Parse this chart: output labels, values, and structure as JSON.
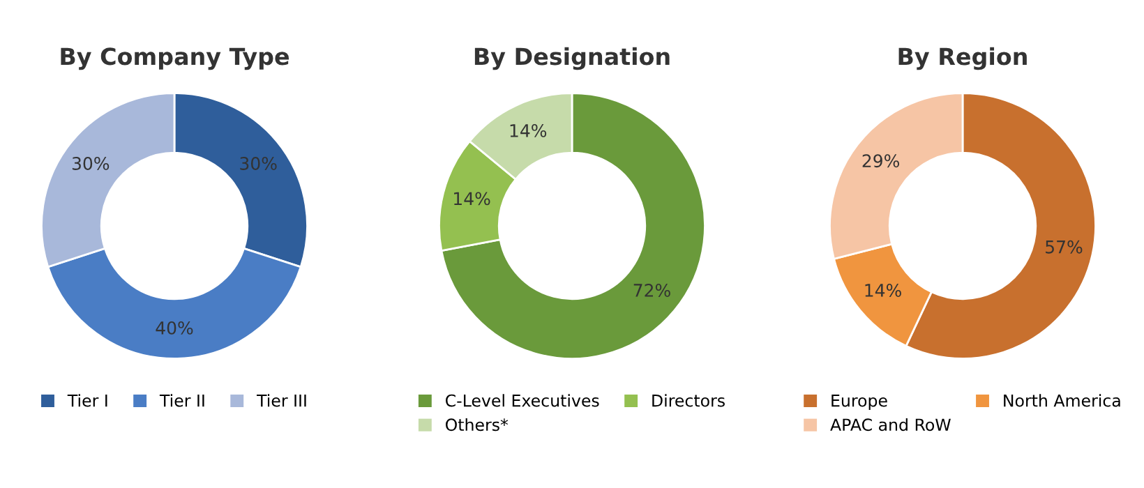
{
  "chart_data": [
    {
      "type": "donut",
      "title": "By Company Type",
      "categories": [
        "Tier I",
        "Tier II",
        "Tier III"
      ],
      "values": [
        30,
        40,
        30
      ],
      "value_labels": [
        "30%",
        "40%",
        "30%"
      ],
      "colors": [
        "#2f5e9b",
        "#4a7dc5",
        "#a8b8da"
      ],
      "legend": "bottom"
    },
    {
      "type": "donut",
      "title": "By Designation",
      "categories": [
        "C-Level Executives",
        "Directors",
        "Others*"
      ],
      "values": [
        72,
        14,
        14
      ],
      "value_labels": [
        "72%",
        "14%",
        "14%"
      ],
      "colors": [
        "#6a9a3b",
        "#94c050",
        "#c6dbaa"
      ],
      "legend": "bottom"
    },
    {
      "type": "donut",
      "title": "By Region",
      "categories": [
        "Europe",
        "North America",
        "APAC and RoW"
      ],
      "values": [
        57,
        14,
        29
      ],
      "value_labels": [
        "57%",
        "14%",
        "29%"
      ],
      "colors": [
        "#c8702e",
        "#f0953f",
        "#f6c5a5"
      ],
      "legend": "bottom"
    }
  ]
}
